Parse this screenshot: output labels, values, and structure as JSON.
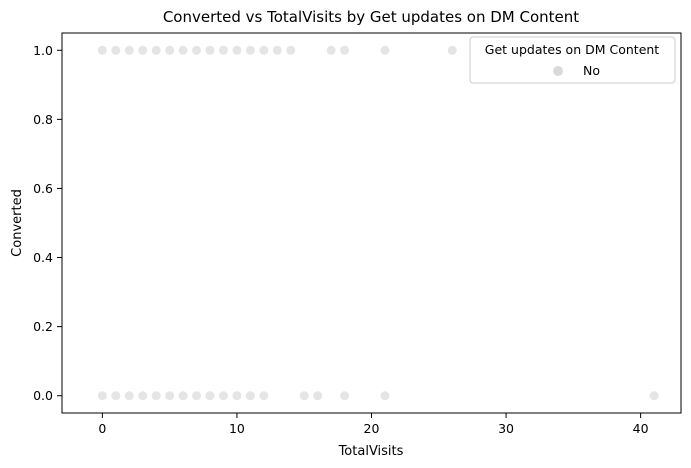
{
  "chart_data": {
    "type": "scatter",
    "title": "Converted vs TotalVisits by Get updates on DM Content",
    "xlabel": "TotalVisits",
    "ylabel": "Converted",
    "xlim": [
      -3,
      43
    ],
    "ylim": [
      -0.05,
      1.05
    ],
    "xticks": [
      "0",
      "10",
      "20",
      "30",
      "40"
    ],
    "yticks": [
      "0.0",
      "0.2",
      "0.4",
      "0.6",
      "0.8",
      "1.0"
    ],
    "xtick_values": [
      0,
      10,
      20,
      30,
      40
    ],
    "ytick_values": [
      0.0,
      0.2,
      0.4,
      0.6,
      0.8,
      1.0
    ],
    "grid": false,
    "legend": {
      "title": "Get updates on DM Content",
      "placement": "top-right",
      "entries": [
        {
          "label": "No",
          "color": "#d9d9d9"
        }
      ]
    },
    "series": [
      {
        "name": "No",
        "color": "#dcdcdc",
        "x": [
          0,
          1,
          2,
          3,
          4,
          5,
          6,
          7,
          8,
          9,
          10,
          11,
          12,
          13,
          14,
          17,
          18,
          21,
          26,
          0,
          1,
          2,
          3,
          4,
          5,
          6,
          7,
          8,
          9,
          10,
          11,
          12,
          15,
          16,
          18,
          21,
          41
        ],
        "y": [
          1,
          1,
          1,
          1,
          1,
          1,
          1,
          1,
          1,
          1,
          1,
          1,
          1,
          1,
          1,
          1,
          1,
          1,
          1,
          0,
          0,
          0,
          0,
          0,
          0,
          0,
          0,
          0,
          0,
          0,
          0,
          0,
          0,
          0,
          0,
          0,
          0
        ]
      }
    ]
  }
}
